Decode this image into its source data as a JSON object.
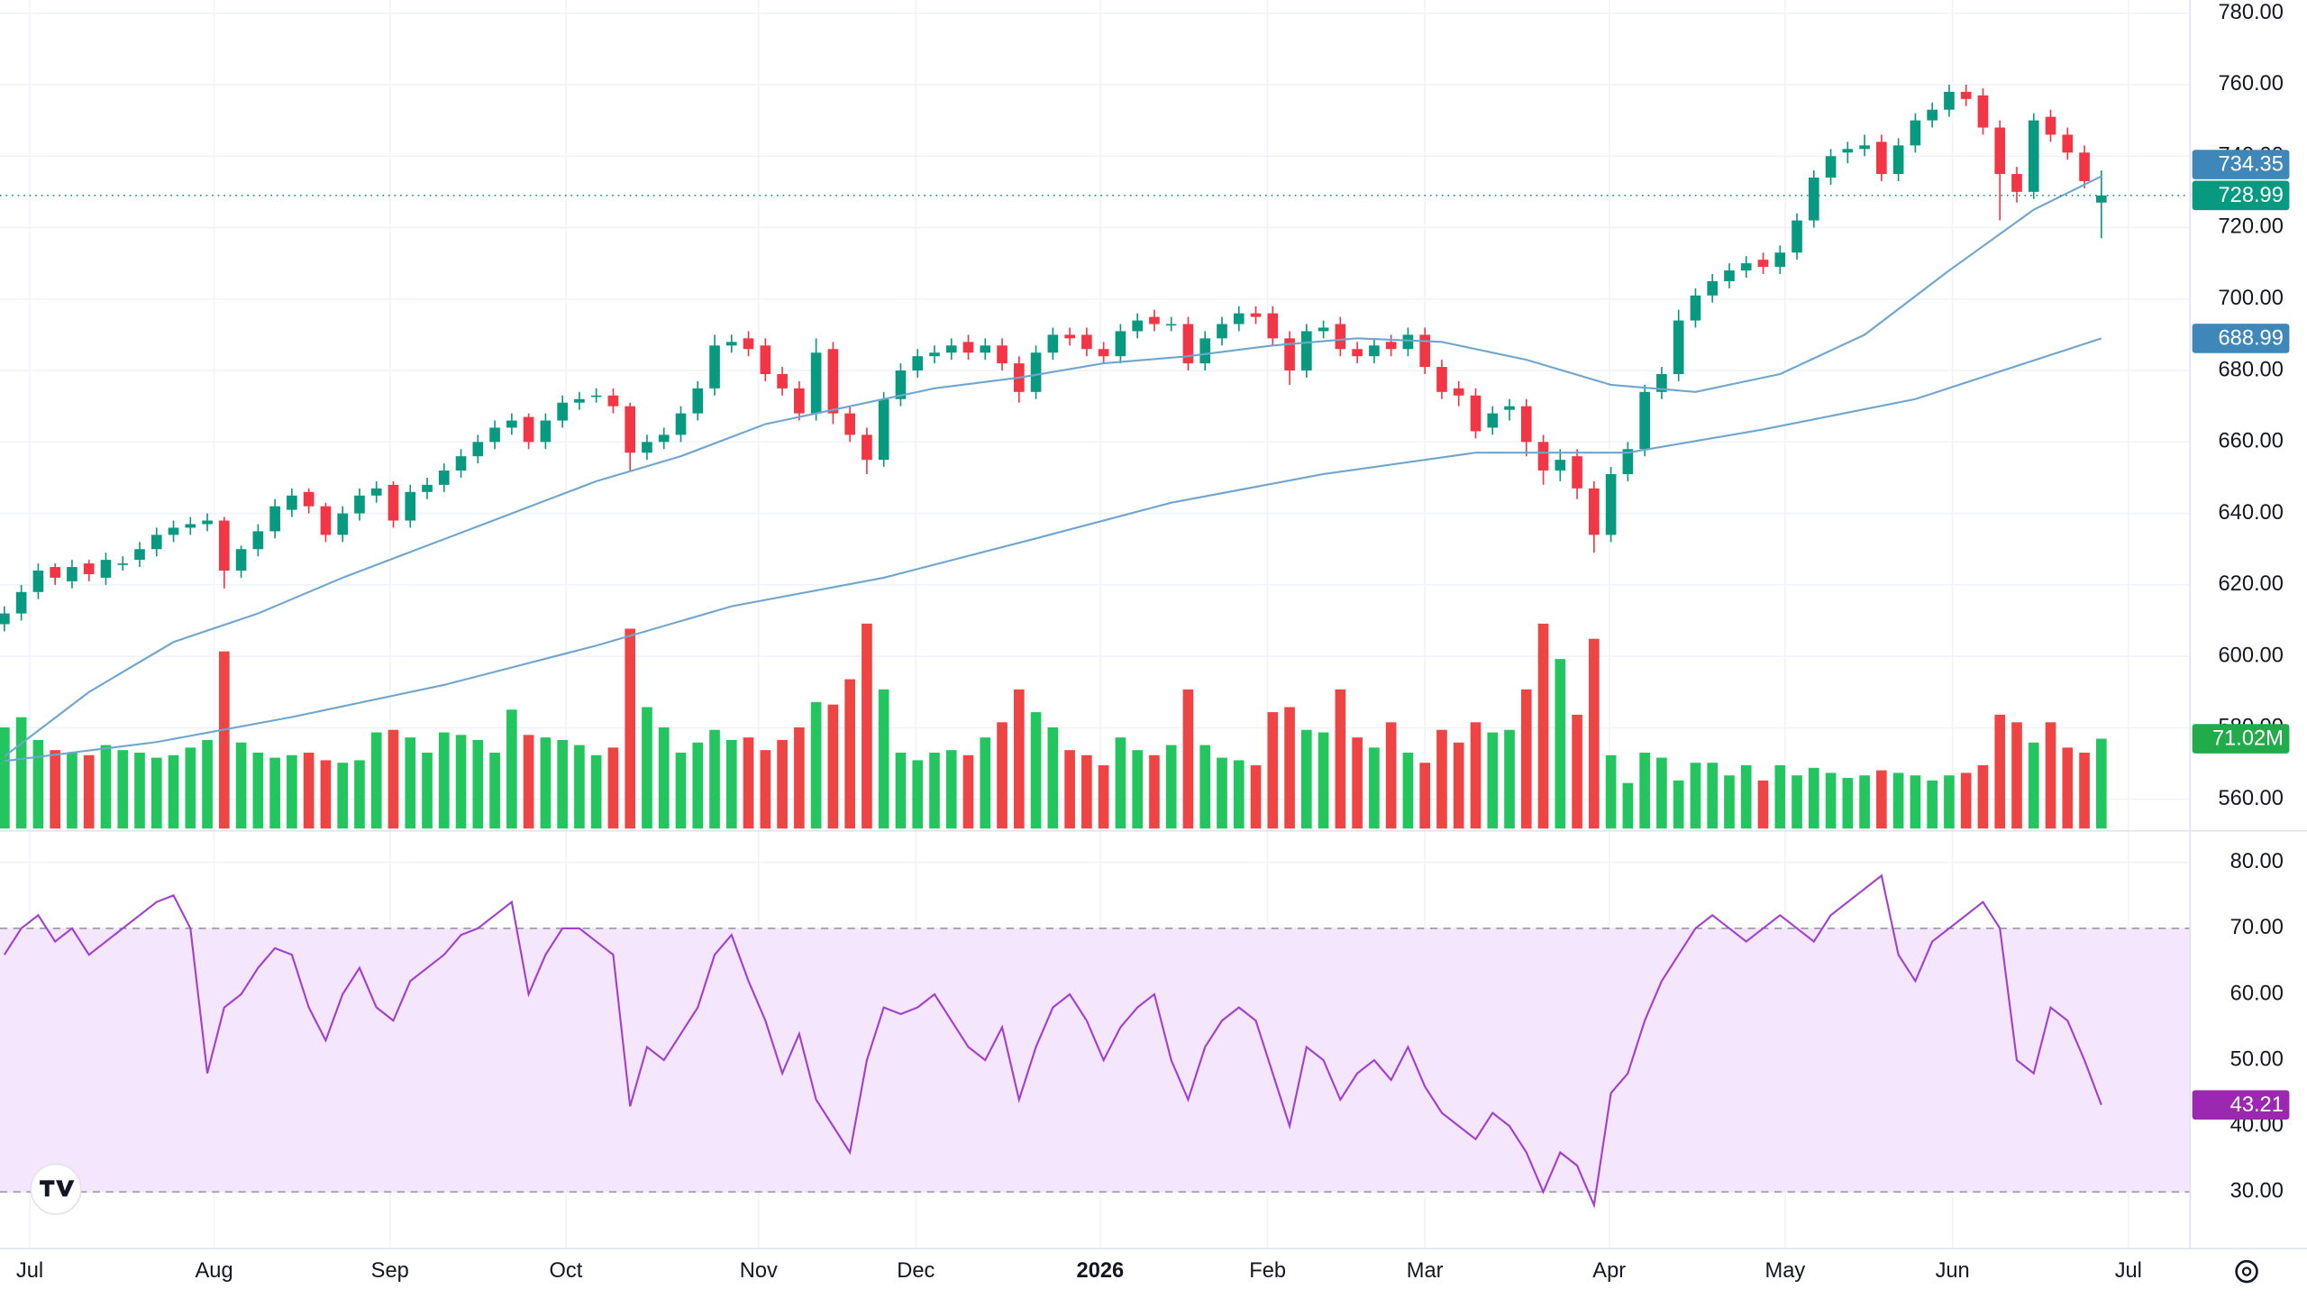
{
  "chart_data": {
    "type": "candlestick",
    "xlim": [
      -0.26,
      129.2
    ],
    "xticks": [
      {
        "value": 1.5,
        "label": "Jul"
      },
      {
        "value": 12.4,
        "label": "Aug"
      },
      {
        "value": 22.8,
        "label": "Sep"
      },
      {
        "value": 33.2,
        "label": "Oct"
      },
      {
        "value": 44.6,
        "label": "Nov"
      },
      {
        "value": 53.9,
        "label": "Dec"
      },
      {
        "value": 64.8,
        "label": "2026",
        "bold": true
      },
      {
        "value": 74.7,
        "label": "Feb"
      },
      {
        "value": 84.0,
        "label": "Mar"
      },
      {
        "value": 94.9,
        "label": "Apr"
      },
      {
        "value": 105.3,
        "label": "May"
      },
      {
        "value": 115.2,
        "label": "Jun"
      },
      {
        "value": 125.6,
        "label": "Jul"
      }
    ],
    "ylim": [
      551.8,
      783.7
    ],
    "yticks": [
      {
        "value": 560,
        "label": "560.00"
      },
      {
        "value": 580,
        "label": "580.00"
      },
      {
        "value": 600,
        "label": "600.00"
      },
      {
        "value": 620,
        "label": "620.00"
      },
      {
        "value": 640,
        "label": "640.00"
      },
      {
        "value": 660,
        "label": "660.00"
      },
      {
        "value": 680,
        "label": "680.00"
      },
      {
        "value": 700,
        "label": "700.00"
      },
      {
        "value": 720,
        "label": "720.00"
      },
      {
        "value": 740,
        "label": "740.00"
      },
      {
        "value": 760,
        "label": "760.00"
      },
      {
        "value": 780,
        "label": "780.00"
      }
    ],
    "grid": true,
    "up_color": "#089981",
    "down_color": "#f23645",
    "open": [
      609,
      612,
      618,
      625,
      621,
      626,
      622,
      626,
      627,
      630,
      634,
      636,
      637,
      638,
      624,
      630,
      635,
      641,
      646,
      642,
      634,
      640,
      645,
      648,
      638,
      646,
      648,
      652,
      656,
      660,
      664,
      667,
      660,
      666,
      671,
      673,
      673,
      670,
      657,
      660,
      662,
      668,
      675,
      687,
      689,
      687,
      679,
      675,
      668,
      686,
      668,
      662,
      655,
      672,
      680,
      684,
      685,
      688,
      685,
      687,
      682,
      674,
      685,
      690,
      690,
      686,
      684,
      691,
      695,
      693,
      693,
      682,
      689,
      693,
      696,
      696,
      689,
      680,
      691,
      693,
      686,
      684,
      688,
      686,
      690,
      681,
      675,
      673,
      664,
      669,
      670,
      660,
      652,
      656,
      647,
      634,
      651,
      658,
      674,
      679,
      694,
      701,
      705,
      708,
      711,
      709,
      713,
      722,
      734,
      741,
      742,
      744,
      735,
      743,
      750,
      753,
      758,
      757,
      748,
      735,
      730,
      751,
      746,
      741,
      727
    ],
    "high": [
      614,
      620,
      626,
      626,
      627,
      627,
      629,
      628,
      632,
      636,
      638,
      639,
      640,
      639,
      631,
      637,
      644,
      647,
      647,
      643,
      642,
      647,
      649,
      649,
      648,
      650,
      654,
      658,
      662,
      666,
      668,
      668,
      668,
      673,
      674,
      675,
      675,
      671,
      662,
      664,
      670,
      677,
      690,
      690,
      691,
      689,
      681,
      677,
      689,
      688,
      670,
      664,
      674,
      682,
      686,
      687,
      689,
      690,
      689,
      689,
      684,
      687,
      692,
      692,
      692,
      688,
      693,
      696,
      697,
      695,
      695,
      691,
      695,
      698,
      698,
      698,
      691,
      693,
      694,
      695,
      688,
      689,
      690,
      692,
      692,
      683,
      677,
      675,
      670,
      672,
      672,
      662,
      658,
      658,
      649,
      653,
      660,
      676,
      681,
      697,
      703,
      707,
      710,
      712,
      713,
      715,
      724,
      736,
      742,
      744,
      746,
      746,
      745,
      752,
      755,
      760,
      760,
      759,
      750,
      737,
      752,
      753,
      748,
      743,
      736
    ],
    "low": [
      607,
      610,
      616,
      620,
      619,
      621,
      620,
      624,
      625,
      628,
      632,
      634,
      635,
      619,
      622,
      628,
      633,
      639,
      640,
      632,
      632,
      638,
      643,
      636,
      636,
      644,
      646,
      650,
      654,
      658,
      662,
      658,
      658,
      664,
      669,
      671,
      668,
      652,
      655,
      658,
      660,
      666,
      673,
      685,
      684,
      677,
      673,
      666,
      666,
      665,
      660,
      651,
      653,
      670,
      678,
      682,
      683,
      683,
      683,
      680,
      671,
      672,
      683,
      687,
      684,
      682,
      682,
      689,
      691,
      691,
      680,
      680,
      687,
      691,
      693,
      687,
      676,
      678,
      689,
      684,
      682,
      682,
      684,
      684,
      679,
      672,
      670,
      661,
      662,
      666,
      656,
      648,
      649,
      644,
      629,
      632,
      649,
      656,
      672,
      677,
      692,
      699,
      703,
      706,
      707,
      707,
      711,
      720,
      732,
      738,
      740,
      733,
      733,
      741,
      748,
      751,
      754,
      746,
      722,
      727,
      728,
      744,
      739,
      731,
      717
    ],
    "close": [
      612,
      618,
      624,
      622,
      625,
      623,
      627,
      626,
      630,
      634,
      636,
      637,
      638,
      624,
      630,
      635,
      642,
      645,
      642,
      634,
      640,
      645,
      647,
      638,
      646,
      648,
      652,
      656,
      660,
      664,
      666,
      660,
      666,
      671,
      672,
      673,
      670,
      657,
      660,
      662,
      668,
      675,
      687,
      688,
      686,
      679,
      675,
      668,
      685,
      668,
      662,
      655,
      672,
      680,
      684,
      685,
      687,
      685,
      687,
      682,
      674,
      685,
      690,
      689,
      686,
      684,
      691,
      694,
      693,
      693,
      682,
      689,
      693,
      696,
      695,
      689,
      680,
      691,
      692,
      686,
      684,
      687,
      686,
      690,
      681,
      674,
      673,
      663,
      668,
      670,
      660,
      652,
      655,
      647,
      634,
      651,
      658,
      674,
      679,
      694,
      701,
      705,
      708,
      710,
      709,
      713,
      722,
      734,
      740,
      742,
      743,
      735,
      743,
      750,
      753,
      758,
      756,
      748,
      735,
      730,
      750,
      746,
      741,
      733,
      728.99
    ],
    "last_line_color": "#089981",
    "moving_averages": [
      {
        "color": "#6fa6cf",
        "label_color": "#3f87b9",
        "x": [
          0,
          5,
          10,
          15,
          20,
          25,
          30,
          35,
          40,
          45,
          50,
          55,
          60,
          65,
          70,
          75,
          80,
          85,
          90,
          95,
          100,
          105,
          110,
          115,
          120,
          124
        ],
        "values": [
          572,
          590,
          604,
          612,
          622,
          631,
          640,
          649,
          656,
          665,
          670,
          675,
          678,
          682,
          684,
          687,
          689,
          688,
          683,
          676,
          674,
          679,
          690,
          708,
          725,
          734.35
        ]
      },
      {
        "color": "#6fa6cf",
        "label_color": "#3f87b9",
        "x": [
          0,
          9,
          17,
          26,
          35,
          43,
          52,
          61,
          69,
          78,
          87,
          96,
          104,
          113,
          124
        ],
        "values": [
          570.7,
          576,
          583,
          592,
          603,
          614,
          622,
          633,
          643,
          651,
          657,
          657,
          663.5,
          672,
          688.99
        ]
      }
    ],
    "volume": {
      "ylim": [
        0,
        655
      ],
      "up_color": "#22c55e",
      "down_color": "#ef4444",
      "label_color": "#22ab4a",
      "last_label": "71.02M",
      "values": [
        80,
        88,
        70,
        62,
        60,
        58,
        66,
        62,
        60,
        56,
        58,
        64,
        70,
        140,
        68,
        60,
        56,
        58,
        60,
        54,
        52,
        54,
        76,
        78,
        72,
        60,
        76,
        74,
        70,
        60,
        94,
        74,
        72,
        70,
        66,
        58,
        64,
        158,
        96,
        80,
        60,
        68,
        78,
        70,
        72,
        62,
        70,
        80,
        100,
        98,
        118,
        162,
        110,
        60,
        54,
        60,
        62,
        58,
        72,
        84,
        110,
        92,
        80,
        62,
        58,
        50,
        72,
        62,
        58,
        66,
        110,
        66,
        56,
        54,
        50,
        92,
        96,
        78,
        76,
        110,
        72,
        64,
        84,
        60,
        52,
        78,
        68,
        84,
        76,
        78,
        110,
        162,
        134,
        90,
        150,
        58,
        36,
        60,
        56,
        38,
        52,
        52,
        42,
        50,
        38,
        50,
        42,
        48,
        44,
        40,
        42,
        46,
        44,
        42,
        38,
        42,
        44,
        50,
        90,
        84,
        68,
        84,
        64,
        60,
        71.02
      ]
    },
    "rsi": {
      "color": "#a33fd0",
      "fill": "#f3e6fd",
      "label_color": "#9c27b0",
      "ylim": [
        21.5,
        84.7
      ],
      "bands": [
        30,
        70
      ],
      "yticks": [
        {
          "value": 30,
          "label": "30.00"
        },
        {
          "value": 40,
          "label": "40.00"
        },
        {
          "value": 50,
          "label": "50.00"
        },
        {
          "value": 60,
          "label": "60.00"
        },
        {
          "value": 70,
          "label": "70.00"
        },
        {
          "value": 80,
          "label": "80.00"
        }
      ],
      "values": [
        66,
        70,
        72,
        68,
        70,
        66,
        68,
        70,
        72,
        74,
        75,
        70,
        48,
        58,
        60,
        64,
        67,
        66,
        58,
        53,
        60,
        64,
        58,
        56,
        62,
        64,
        66,
        69,
        70,
        72,
        74,
        60,
        66,
        70,
        70,
        68,
        66,
        43,
        52,
        50,
        54,
        58,
        66,
        69,
        62,
        56,
        48,
        54,
        44,
        40,
        36,
        50,
        58,
        57,
        58,
        60,
        56,
        52,
        50,
        55,
        44,
        52,
        58,
        60,
        56,
        50,
        55,
        58,
        60,
        50,
        44,
        52,
        56,
        58,
        56,
        48,
        40,
        52,
        50,
        44,
        48,
        50,
        47,
        52,
        46,
        42,
        40,
        38,
        42,
        40,
        36,
        30,
        36,
        34,
        28,
        45,
        48,
        56,
        62,
        66,
        70,
        72,
        70,
        68,
        70,
        72,
        70,
        68,
        72,
        74,
        76,
        78,
        66,
        62,
        68,
        70,
        72,
        74,
        70,
        50,
        48,
        58,
        56,
        50,
        43.21
      ]
    }
  }
}
